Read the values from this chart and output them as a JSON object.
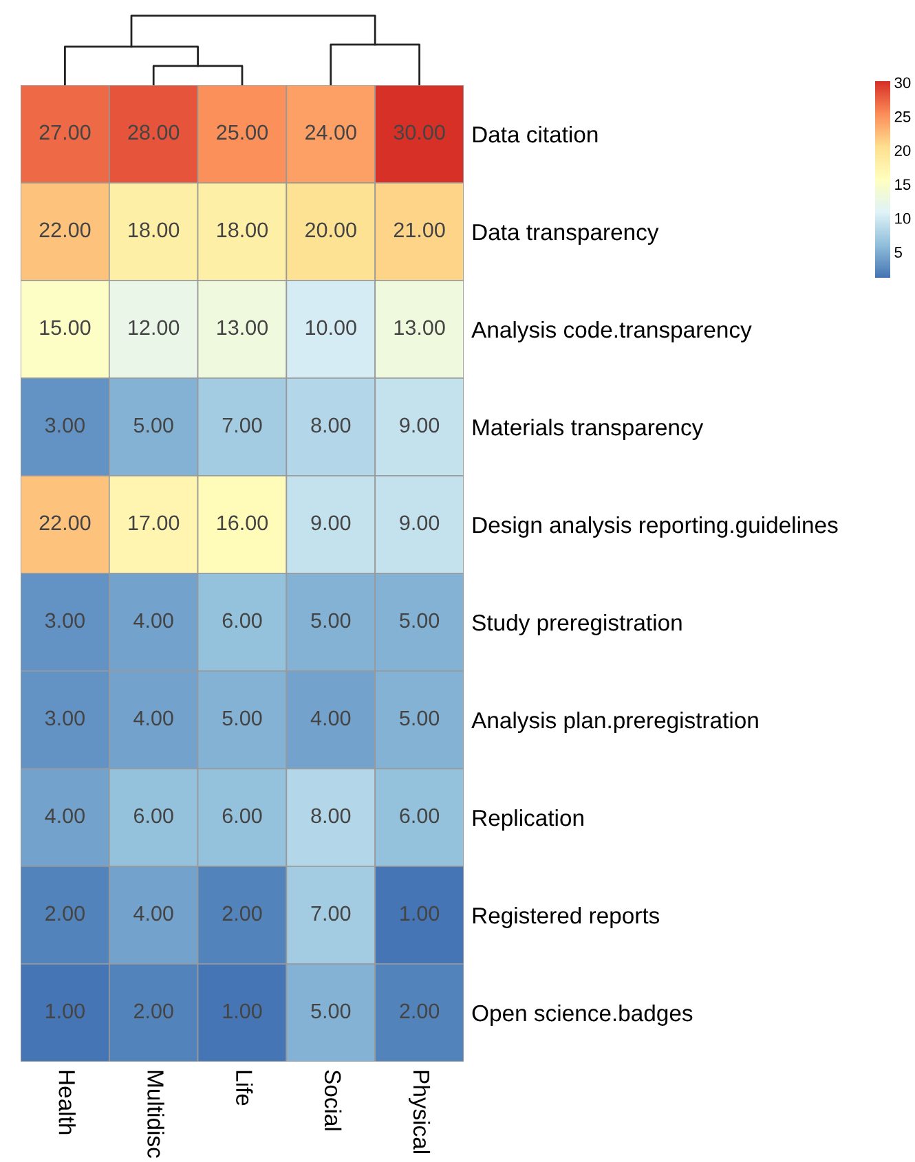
{
  "chart_data": {
    "type": "heatmap",
    "categories": [
      "Health",
      "Multidisc",
      "Life",
      "Social",
      "Physical"
    ],
    "y_categories": [
      "Data citation",
      "Data transparency",
      "Analysis code.transparency",
      "Materials transparency",
      "Design analysis reporting.guidelines",
      "Study preregistration",
      "Analysis plan.preregistration",
      "Replication",
      "Registered reports",
      "Open science.badges"
    ],
    "cells": [
      [
        27,
        28,
        25,
        24,
        30
      ],
      [
        22,
        18,
        18,
        20,
        21
      ],
      [
        15,
        12,
        13,
        10,
        13
      ],
      [
        3,
        5,
        7,
        8,
        9
      ],
      [
        22,
        17,
        16,
        9,
        9
      ],
      [
        3,
        4,
        6,
        5,
        5
      ],
      [
        3,
        4,
        5,
        4,
        5
      ],
      [
        4,
        6,
        6,
        8,
        6
      ],
      [
        2,
        4,
        2,
        7,
        1
      ],
      [
        1,
        2,
        1,
        5,
        2
      ]
    ],
    "cell_labels": [
      [
        "27.00",
        "28.00",
        "25.00",
        "24.00",
        "30.00"
      ],
      [
        "22.00",
        "18.00",
        "18.00",
        "20.00",
        "21.00"
      ],
      [
        "15.00",
        "12.00",
        "13.00",
        "10.00",
        "13.00"
      ],
      [
        "3.00",
        "5.00",
        "7.00",
        "8.00",
        "9.00"
      ],
      [
        "22.00",
        "17.00",
        "16.00",
        "9.00",
        "9.00"
      ],
      [
        "3.00",
        "4.00",
        "6.00",
        "5.00",
        "5.00"
      ],
      [
        "3.00",
        "4.00",
        "5.00",
        "4.00",
        "5.00"
      ],
      [
        "4.00",
        "6.00",
        "6.00",
        "8.00",
        "6.00"
      ],
      [
        "2.00",
        "4.00",
        "2.00",
        "7.00",
        "1.00"
      ],
      [
        "1.00",
        "2.00",
        "1.00",
        "5.00",
        "2.00"
      ]
    ],
    "clim": [
      1,
      30
    ],
    "cticks": [
      5,
      10,
      15,
      20,
      25,
      30
    ]
  }
}
